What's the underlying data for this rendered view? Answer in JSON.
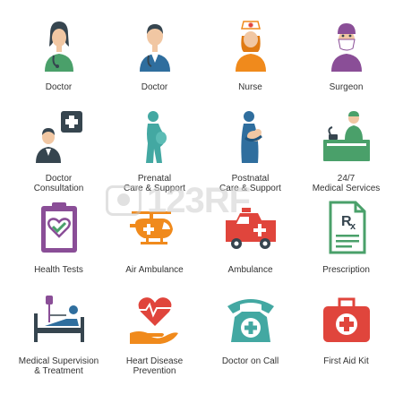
{
  "icons": [
    {
      "label": "Doctor",
      "icon": "female-doctor-icon"
    },
    {
      "label": "Doctor",
      "icon": "male-doctor-icon"
    },
    {
      "label": "Nurse",
      "icon": "nurse-icon"
    },
    {
      "label": "Surgeon",
      "icon": "surgeon-icon"
    },
    {
      "label": "Doctor\nConsultation",
      "icon": "doctor-consultation-icon"
    },
    {
      "label": "Prenatal\nCare & Support",
      "icon": "prenatal-icon"
    },
    {
      "label": "Postnatal\nCare & Support",
      "icon": "postnatal-icon"
    },
    {
      "label": "24/7\nMedical Services",
      "icon": "medical-services-icon"
    },
    {
      "label": "Health Tests",
      "icon": "clipboard-heart-icon"
    },
    {
      "label": "Air Ambulance",
      "icon": "helicopter-icon"
    },
    {
      "label": "Ambulance",
      "icon": "ambulance-icon"
    },
    {
      "label": "Prescription",
      "icon": "prescription-icon"
    },
    {
      "label": "Medical Supervision\n& Treatment",
      "icon": "hospital-bed-icon"
    },
    {
      "label": "Heart Disease\nPrevention",
      "icon": "heart-hand-icon"
    },
    {
      "label": "Doctor on Call",
      "icon": "telephone-icon"
    },
    {
      "label": "First Aid Kit",
      "icon": "first-aid-kit-icon"
    }
  ],
  "watermark": {
    "text": "123RF"
  },
  "colors": {
    "green": "#4aa06a",
    "blue": "#2f6e9e",
    "orange": "#f08a1c",
    "purple": "#8a4e97",
    "teal": "#43a8a2",
    "red": "#e0453c",
    "dark": "#36454f",
    "skin": "#f1c7a3"
  }
}
